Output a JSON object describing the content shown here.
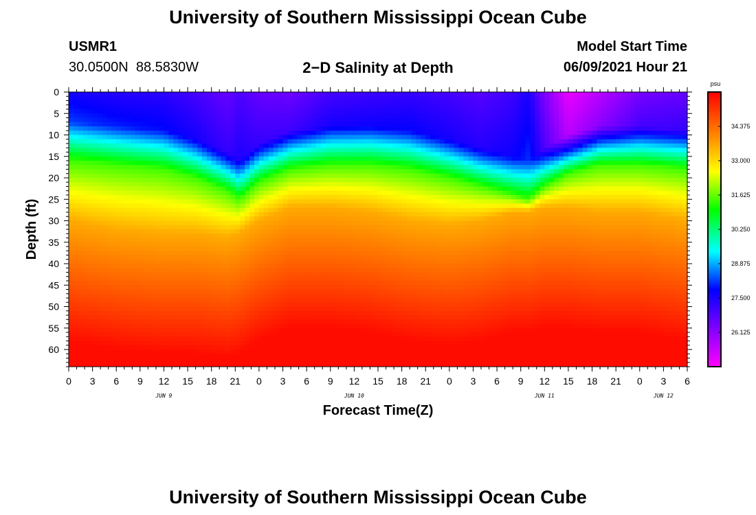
{
  "header": {
    "title": "University of Southern Mississippi Ocean Cube",
    "station_id": "USMR1",
    "coordinates": "30.0500N  88.5830W",
    "plot_title": "2−D Salinity at Depth",
    "model_start_label": "Model Start Time",
    "model_start_value": "06/09/2021 Hour 21"
  },
  "footer": {
    "title": "University of Southern Mississippi Ocean Cube"
  },
  "colors": {
    "background": "#ffffff",
    "axis": "#000000"
  },
  "chart_data": {
    "type": "heatmap",
    "title": "2−D Salinity at Depth",
    "xlabel": "Forecast Time(Z)",
    "ylabel": "Depth (ft)",
    "x_range_hours": [
      0,
      78
    ],
    "y_range_ft": [
      0,
      64
    ],
    "y_inverted": true,
    "x_tick_hours": [
      0,
      3,
      6,
      9,
      12,
      15,
      18,
      21,
      24,
      27,
      30,
      33,
      36,
      39,
      42,
      45,
      48,
      51,
      54,
      57,
      60,
      63,
      66,
      69,
      72,
      75,
      78
    ],
    "x_tick_labels": [
      "0",
      "3",
      "6",
      "9",
      "12",
      "15",
      "18",
      "21",
      "0",
      "3",
      "6",
      "9",
      "12",
      "15",
      "18",
      "21",
      "0",
      "3",
      "6",
      "9",
      "12",
      "15",
      "18",
      "21",
      "0",
      "3",
      "6"
    ],
    "y_ticks": [
      0,
      5,
      10,
      15,
      20,
      25,
      30,
      35,
      40,
      45,
      50,
      55,
      60
    ],
    "y_tick_labels": [
      "0",
      "5",
      "10",
      "15",
      "20",
      "25",
      "30",
      "35",
      "40",
      "45",
      "50",
      "55",
      "60"
    ],
    "date_labels": [
      {
        "text": "JUN 9",
        "hour": 12
      },
      {
        "text": "JUN 10",
        "hour": 36
      },
      {
        "text": "JUN 11",
        "hour": 60
      },
      {
        "text": "JUN 12",
        "hour": 75
      }
    ],
    "colorbar": {
      "unit": "psu",
      "min": 24.75,
      "max": 35.75,
      "tick_values": [
        34.375,
        33.0,
        31.625,
        30.25,
        28.875,
        27.5,
        26.125
      ],
      "tick_labels": [
        "34.375",
        "33.000",
        "31.625",
        "30.250",
        "28.875",
        "27.500",
        "26.125"
      ]
    },
    "model": {
      "time_hours": [
        0,
        6,
        12,
        16,
        20,
        21.5,
        24,
        28,
        33,
        38,
        43,
        48,
        52,
        56,
        58,
        60,
        63,
        67,
        72,
        78
      ],
      "surface_salinity": [
        27.6,
        27.4,
        27.3,
        27.0,
        26.6,
        26.9,
        26.6,
        26.5,
        27.0,
        27.1,
        27.2,
        27.0,
        26.8,
        27.1,
        27.5,
        26.3,
        25.0,
        25.6,
        26.4,
        26.6
      ],
      "halocline_top_ft": [
        11,
        12,
        13,
        15,
        18,
        20,
        16,
        13,
        12,
        12,
        13,
        15,
        17,
        19,
        20,
        17,
        14,
        12,
        12,
        13
      ],
      "deep_top_ft": [
        30,
        32,
        33,
        33,
        34,
        33,
        30,
        27,
        27,
        28,
        30,
        31,
        30,
        28,
        28,
        27,
        27,
        28,
        28,
        30
      ],
      "bottom_salinity": 35.6
    }
  }
}
